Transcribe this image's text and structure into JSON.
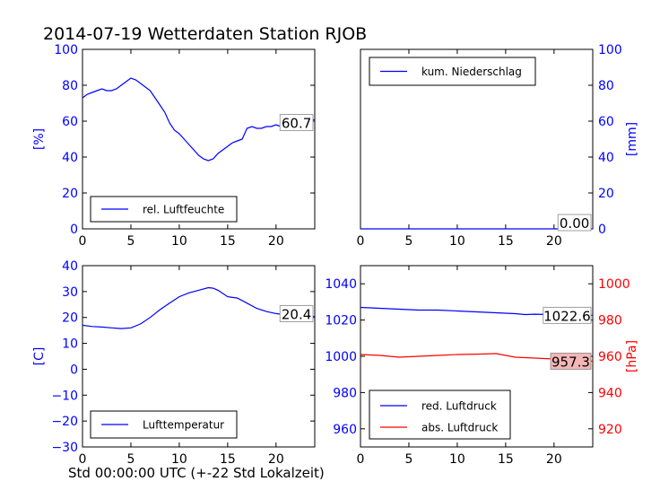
{
  "title": "2014-07-19 Wetterdaten Station RJOB",
  "footer_label": "Std 00:00:00 UTC (+-22 Std Lokalzeit)",
  "colors": {
    "blue": "#0000ff",
    "red": "#ff0000",
    "black": "#000000",
    "red_box": "#f4b6b6"
  },
  "chart_data": [
    {
      "type": "line",
      "id": "humidity",
      "ylabel": "[%]",
      "ylabel_color": "#0000ff",
      "ylim": [
        0,
        100
      ],
      "xlim": [
        0,
        24
      ],
      "x_ticks": [
        "0",
        "5",
        "10",
        "15",
        "20"
      ],
      "y_ticks": [
        "0",
        "20",
        "40",
        "60",
        "80",
        "100"
      ],
      "legend_position": "lower-left",
      "end_label": "60.7",
      "series": [
        {
          "name": "rel. Luftfeuchte",
          "color": "#0000ff",
          "x": [
            0,
            0.5,
            1,
            1.5,
            2,
            2.5,
            3,
            3.5,
            4,
            4.5,
            5,
            5.5,
            6,
            6.5,
            7,
            7.5,
            8,
            8.5,
            9,
            9.5,
            10,
            10.5,
            11,
            11.5,
            12,
            12.5,
            13,
            13.5,
            14,
            14.5,
            15,
            15.5,
            16,
            16.5,
            17,
            17.5,
            18,
            18.5,
            19,
            19.5,
            20,
            20.5,
            21,
            21.5,
            22,
            22.5,
            23,
            23.5,
            24
          ],
          "values": [
            73,
            75,
            76,
            77,
            78,
            77,
            77,
            78,
            80,
            82,
            84,
            83,
            81,
            79,
            77,
            73,
            69,
            65,
            59,
            55,
            53,
            50,
            47,
            44,
            41,
            39,
            38,
            39,
            42,
            44,
            46,
            48,
            49,
            50,
            56,
            57,
            56,
            56,
            57,
            57,
            58,
            57,
            58,
            59,
            60,
            61,
            61,
            61,
            60.7
          ]
        }
      ]
    },
    {
      "type": "line",
      "id": "precipitation",
      "ylabel": "[mm]",
      "ylabel_color": "#0000ff",
      "ylim": [
        0,
        100
      ],
      "xlim": [
        0,
        24
      ],
      "x_ticks": [
        "0",
        "5",
        "10",
        "15",
        "20"
      ],
      "y_ticks": [
        "0",
        "20",
        "40",
        "60",
        "80",
        "100"
      ],
      "legend_position": "upper-left",
      "end_label": "0.00",
      "series": [
        {
          "name": "kum. Niederschlag",
          "color": "#0000ff",
          "x": [
            0,
            24
          ],
          "values": [
            0,
            0
          ]
        }
      ]
    },
    {
      "type": "line",
      "id": "temperature",
      "ylabel": "[C]",
      "ylabel_color": "#0000ff",
      "ylim": [
        -30,
        40
      ],
      "xlim": [
        0,
        24
      ],
      "x_ticks": [
        "0",
        "5",
        "10",
        "15",
        "20"
      ],
      "y_ticks": [
        "−30",
        "−20",
        "−10",
        "0",
        "10",
        "20",
        "30",
        "40"
      ],
      "legend_position": "lower-left",
      "end_label": "20.4",
      "series": [
        {
          "name": "Lufttemperatur",
          "color": "#0000ff",
          "x": [
            0,
            1,
            2,
            3,
            4,
            5,
            6,
            7,
            8,
            9,
            10,
            11,
            12,
            13,
            13.5,
            14,
            15,
            16,
            17,
            18,
            19,
            20,
            21,
            22,
            23,
            24
          ],
          "values": [
            17,
            16.5,
            16.3,
            16,
            15.7,
            16,
            17.5,
            20,
            23,
            25.5,
            28,
            29.5,
            30.5,
            31.5,
            31.3,
            30.5,
            28,
            27.5,
            25.5,
            23.5,
            22.3,
            21.5,
            21,
            20.8,
            20.6,
            20.4
          ]
        }
      ]
    },
    {
      "type": "line",
      "id": "pressure",
      "ylabel": "[hPa]",
      "ylabel_color": "#ff0000",
      "ylim": [
        950,
        1050
      ],
      "ylim_right": [
        910,
        1010
      ],
      "xlim": [
        0,
        24
      ],
      "x_ticks": [
        "0",
        "5",
        "10",
        "15",
        "20"
      ],
      "y_ticks_left": [
        "960",
        "980",
        "1000",
        "1020",
        "1040"
      ],
      "y_ticks_right": [
        "920",
        "940",
        "960",
        "980",
        "1000"
      ],
      "legend_position": "lower-left",
      "end_labels": [
        "1022.6",
        "957.3"
      ],
      "series": [
        {
          "name": "red. Luftdruck",
          "color": "#0000ff",
          "x": [
            0,
            2,
            4,
            6,
            8,
            10,
            12,
            14,
            16,
            17,
            18,
            20,
            22,
            24
          ],
          "values": [
            1027,
            1026.5,
            1026,
            1025.5,
            1025.5,
            1025,
            1024.5,
            1024,
            1023.5,
            1023,
            1023.2,
            1023,
            1022.8,
            1022.6
          ]
        },
        {
          "name": "abs. Luftdruck",
          "color": "#ff0000",
          "axis": "right",
          "x": [
            0,
            2,
            4,
            6,
            8,
            10,
            12,
            14,
            16,
            18,
            20,
            22,
            24
          ],
          "values": [
            961,
            960.5,
            959.5,
            960,
            960.5,
            961,
            961.2,
            961.5,
            959.5,
            959,
            958.5,
            958,
            957.3
          ]
        }
      ]
    }
  ]
}
